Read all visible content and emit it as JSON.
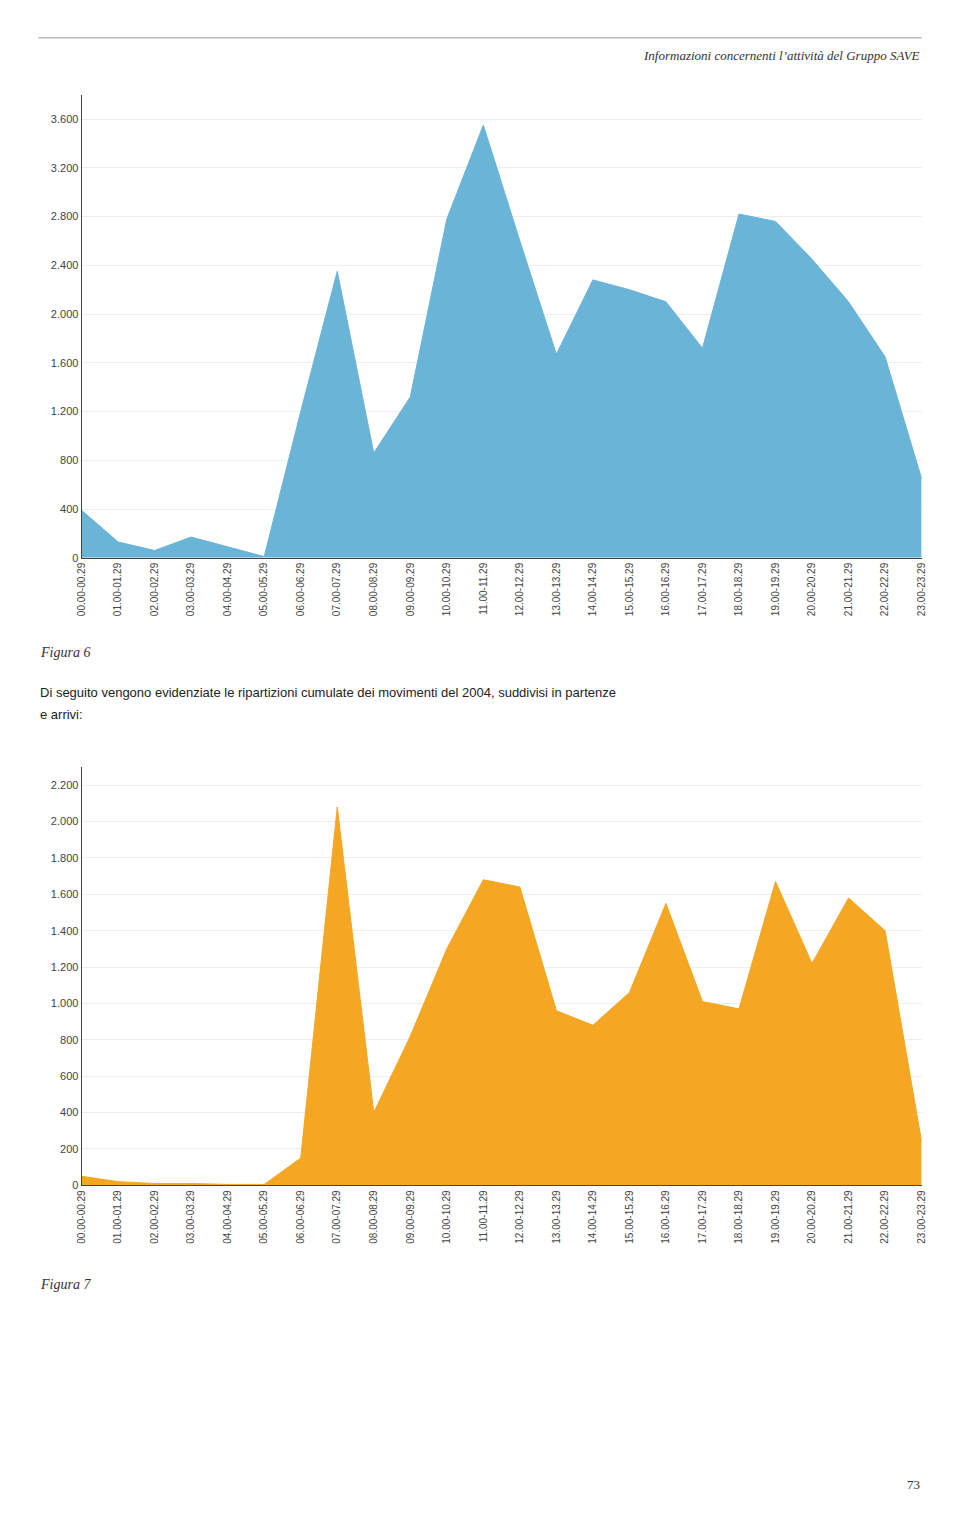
{
  "chart_data": [
    {
      "type": "area",
      "title": "Figura 6",
      "categories": [
        "00.00-00.29",
        "01.00-01.29",
        "02.00-02.29",
        "03.00-03.29",
        "04.00-04.29",
        "05.00-05.29",
        "06.00-06.29",
        "07.00-07.29",
        "08.00-08.29",
        "09.00-09.29",
        "10.00-10.29",
        "11.00-11.29",
        "12.00-12.29",
        "13.00-13.29",
        "14.00-14.29",
        "15.00-15.29",
        "16.00-16.29",
        "17.00-17.29",
        "18.00-18.29",
        "19.00-19.29",
        "20.00-20.29",
        "21.00-21.29",
        "22.00-22.29",
        "23.00-23.29"
      ],
      "values": [
        390,
        130,
        60,
        170,
        90,
        10,
        1200,
        2350,
        860,
        1320,
        2780,
        3550,
        2600,
        1670,
        2280,
        2200,
        2100,
        1720,
        2820,
        2760,
        2450,
        2100,
        1650,
        650
      ],
      "color": "#6ab4d8",
      "ylim": [
        0,
        3800
      ],
      "yticks": [
        0,
        400,
        800,
        {
          "value": 1200,
          "label": "1.200"
        },
        {
          "value": 1600,
          "label": "1.600"
        },
        {
          "value": 2000,
          "label": "2.000"
        },
        {
          "value": 2400,
          "label": "2.400"
        },
        {
          "value": 2800,
          "label": "2.800"
        },
        {
          "value": 3200,
          "label": "3.200"
        },
        {
          "value": 3600,
          "label": "3.600"
        }
      ],
      "grid": true,
      "annotations": [
        "Informazioni concernenti l’attività del Gruppo SAVE",
        "Di seguito vengono evidenziate le ripartizioni cumulate dei movimenti del 2004, suddivisi in partenze",
        "e arrivi:"
      ]
    },
    {
      "type": "area",
      "title": "Figura 7",
      "categories": [
        "00.00-00.29",
        "01.00-01.29",
        "02.00-02.29",
        "03.00-03.29",
        "04.00-04.29",
        "05.00-05.29",
        "06.00-06.29",
        "07.00-07.29",
        "08.00-08.29",
        "09.00-09.29",
        "10.00-10.29",
        "11.00-11.29",
        "12.00-12.29",
        "13.00-13.29",
        "14.00-14.29",
        "15.00-15.29",
        "16.00-16.29",
        "17.00-17.29",
        "18.00-18.29",
        "19.00-19.29",
        "20.00-20.29",
        "21.00-21.29",
        "22.00-22.29",
        "23.00-23.29"
      ],
      "values": [
        50,
        20,
        10,
        10,
        5,
        5,
        150,
        2080,
        400,
        820,
        1300,
        1680,
        1640,
        960,
        880,
        1060,
        1550,
        1010,
        970,
        1670,
        1220,
        1580,
        1400,
        240
      ],
      "color": "#f5a623",
      "ylim": [
        0,
        2300
      ],
      "yticks": [
        0,
        200,
        400,
        600,
        800,
        {
          "value": 1000,
          "label": "1.000"
        },
        {
          "value": 1200,
          "label": "1.200"
        },
        {
          "value": 1400,
          "label": "1.400"
        },
        {
          "value": 1600,
          "label": "1.600"
        },
        {
          "value": 1800,
          "label": "1.800"
        },
        {
          "value": 2000,
          "label": "2.000"
        },
        {
          "value": 2200,
          "label": "2.200"
        }
      ],
      "grid": true,
      "annotations": [
        "73"
      ]
    }
  ]
}
